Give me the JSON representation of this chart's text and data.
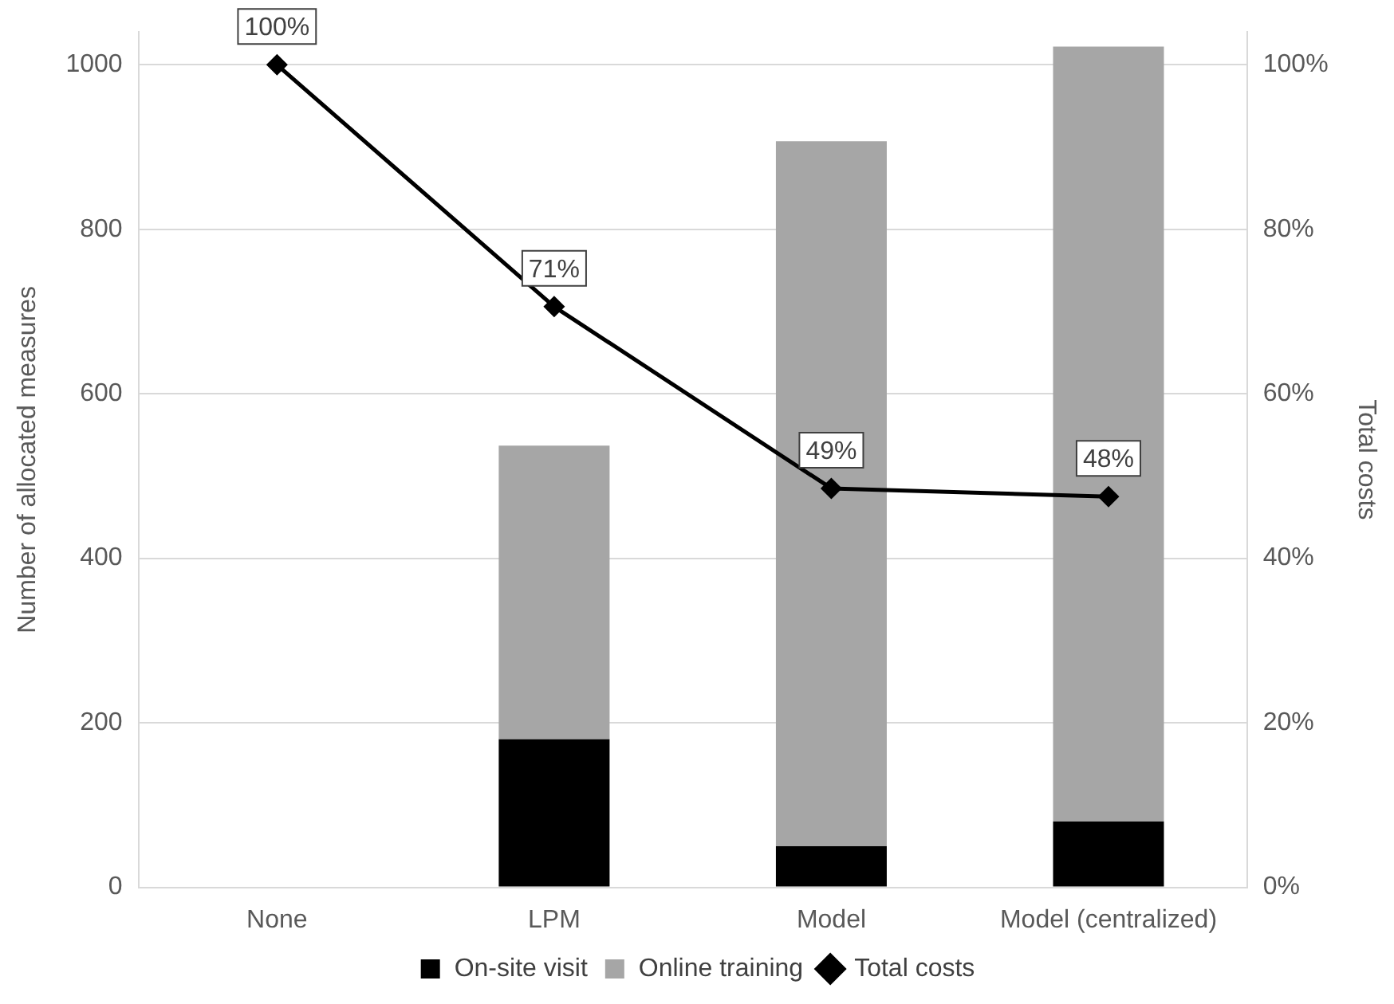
{
  "chart_data": {
    "type": "bar",
    "stacked": true,
    "categories": [
      "None",
      "LPM",
      "Model",
      "Model (centralized)"
    ],
    "series": [
      {
        "name": "On-site visit",
        "color": "#000000",
        "values": [
          0,
          180,
          50,
          80
        ]
      },
      {
        "name": "Online training",
        "color": "#a6a6a6",
        "values": [
          0,
          357,
          857,
          942
        ]
      },
      {
        "name": "Total costs",
        "type": "line",
        "axis": "y2",
        "color": "#000000",
        "marker": "diamond",
        "values": [
          100,
          70.6,
          48.5,
          47.5
        ],
        "value_labels": [
          "100%",
          "71%",
          "49%",
          "48%"
        ]
      }
    ],
    "ylabel": "Number of allocated measures",
    "y2label": "Total costs",
    "ylim": [
      0,
      1040
    ],
    "yticks": [
      0,
      200,
      400,
      600,
      800,
      1000
    ],
    "y2lim": [
      0,
      104
    ],
    "y2ticks": [
      {
        "value": 0,
        "label": "0%"
      },
      {
        "value": 20,
        "label": "20%"
      },
      {
        "value": 40,
        "label": "40%"
      },
      {
        "value": 60,
        "label": "60%"
      },
      {
        "value": 80,
        "label": "80%"
      },
      {
        "value": 100,
        "label": "100%"
      }
    ],
    "grid": "y",
    "legend": "bottom"
  }
}
